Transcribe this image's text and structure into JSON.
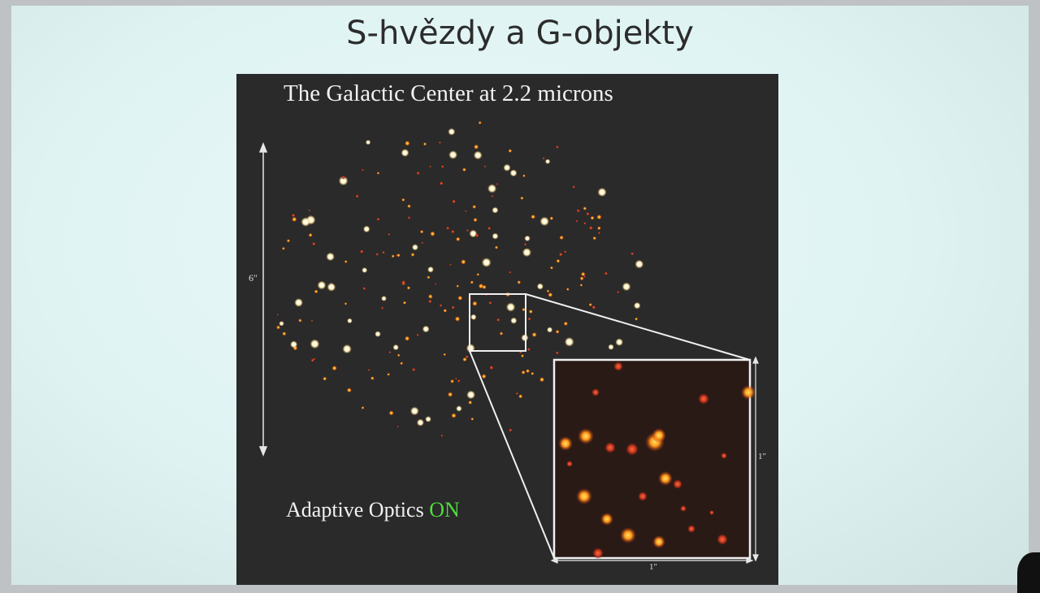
{
  "slide": {
    "title": "S-hvězdy a G-objekty"
  },
  "panel": {
    "title": "The Galactic Center at 2.2 microns",
    "ao_prefix": "Adaptive Optics ",
    "ao_status": "ON",
    "scale_vertical": "6″",
    "inset_scale_vertical": "1″",
    "inset_scale_horizontal": "1″"
  },
  "colors": {
    "slide_background": "#e2f5f5",
    "panel_background": "#2a2a2a",
    "ao_on": "#4fdc3c",
    "star_bright": "#fff6cf",
    "star_orange": "#ff8a1a",
    "star_red": "#c8321e"
  }
}
